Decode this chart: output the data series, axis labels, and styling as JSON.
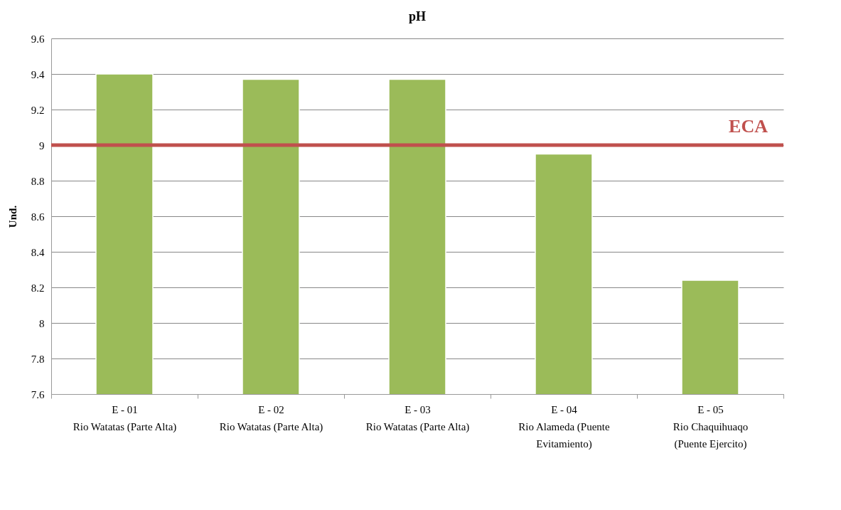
{
  "chart_data": {
    "type": "bar",
    "title": "pH",
    "ylabel": "Und.",
    "categories": [
      "E - 01\nRio Watatas (Parte Alta)",
      "E - 02\nRio Watatas (Parte Alta)",
      "E - 03\nRio Watatas (Parte Alta)",
      "E - 04\nRio Alameda (Puente\nEvitamiento)",
      "E - 05\nRio Chaquihuaqo\n(Puente Ejercito)"
    ],
    "values": [
      9.4,
      9.37,
      9.37,
      8.95,
      8.24
    ],
    "color": "#9bbb59",
    "ylim": [
      7.6,
      9.6
    ],
    "yticks": [
      7.6,
      7.8,
      8,
      8.2,
      8.4,
      8.6,
      8.8,
      9,
      9.2,
      9.4,
      9.6
    ],
    "ref_lines": [
      {
        "axis": "y",
        "value": 9,
        "label": "ECA",
        "color": "#c0504d"
      }
    ],
    "grid": "y"
  }
}
